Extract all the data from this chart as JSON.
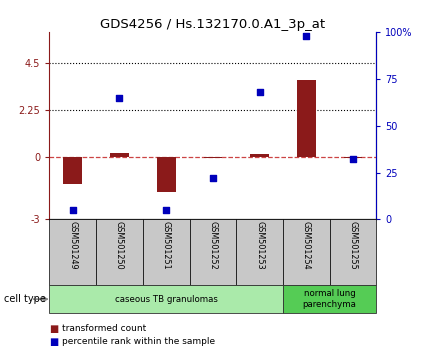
{
  "title": "GDS4256 / Hs.132170.0.A1_3p_at",
  "samples": [
    "GSM501249",
    "GSM501250",
    "GSM501251",
    "GSM501252",
    "GSM501253",
    "GSM501254",
    "GSM501255"
  ],
  "transformed_counts": [
    -1.3,
    0.2,
    -1.7,
    -0.05,
    0.15,
    3.7,
    -0.05
  ],
  "percentile_ranks": [
    5,
    65,
    5,
    22,
    68,
    98,
    32
  ],
  "ylim_left": [
    -3,
    6
  ],
  "ylim_right": [
    0,
    100
  ],
  "yticks_left": [
    -3,
    0,
    2.25,
    4.5
  ],
  "ytick_labels_left": [
    "-3",
    "0",
    "2.25",
    "4.5"
  ],
  "yticks_right": [
    0,
    25,
    50,
    75,
    100
  ],
  "ytick_labels_right": [
    "0",
    "25",
    "50",
    "75",
    "100%"
  ],
  "hlines": [
    4.5,
    2.25
  ],
  "bar_color": "#8B1A1A",
  "scatter_color": "#0000BB",
  "zero_line_color": "#CC4444",
  "groups": [
    {
      "label": "caseous TB granulomas",
      "start": 0,
      "end": 4,
      "color": "#AAEAAA"
    },
    {
      "label": "normal lung\nparenchyma",
      "start": 5,
      "end": 6,
      "color": "#55CC55"
    }
  ],
  "cell_type_label": "cell type",
  "legend_red_label": "transformed count",
  "legend_blue_label": "percentile rank within the sample",
  "bar_width": 0.4
}
